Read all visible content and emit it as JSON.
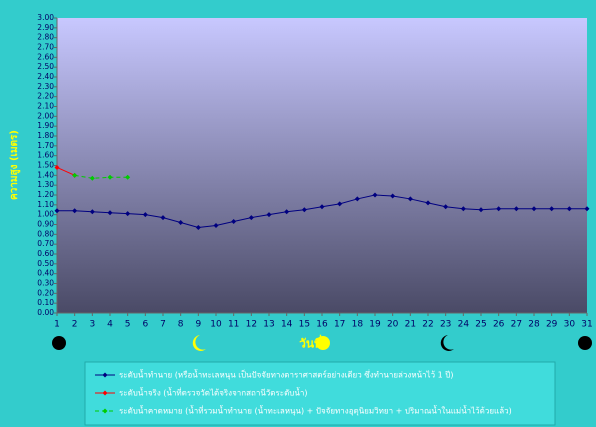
{
  "chart_data": {
    "type": "line",
    "y_label": "ความสูง (เมตร)",
    "x_label": "วันที่",
    "x": [
      1,
      2,
      3,
      4,
      5,
      6,
      7,
      8,
      9,
      10,
      11,
      12,
      13,
      14,
      15,
      16,
      17,
      18,
      19,
      20,
      21,
      22,
      23,
      24,
      25,
      26,
      27,
      28,
      29,
      30,
      31
    ],
    "xlim": [
      1,
      31
    ],
    "xticks": [
      1,
      2,
      3,
      4,
      5,
      6,
      7,
      8,
      9,
      10,
      11,
      12,
      13,
      14,
      15,
      16,
      17,
      18,
      19,
      20,
      21,
      22,
      23,
      24,
      25,
      26,
      27,
      28,
      29,
      30,
      31
    ],
    "ylim": [
      0,
      3
    ],
    "yticks": [
      {
        "value": 0,
        "label": "0.00"
      },
      {
        "value": 0.1,
        "label": "0.10"
      },
      {
        "value": 0.2,
        "label": "0.20"
      },
      {
        "value": 0.3,
        "label": "0.30"
      },
      {
        "value": 0.4,
        "label": "0.40"
      },
      {
        "value": 0.5,
        "label": "0.50"
      },
      {
        "value": 0.6,
        "label": "0.60"
      },
      {
        "value": 0.7,
        "label": "0.70"
      },
      {
        "value": 0.8,
        "label": "0.80"
      },
      {
        "value": 0.9,
        "label": "0.90"
      },
      {
        "value": 1,
        "label": "1.00"
      },
      {
        "value": 1.1,
        "label": "1.10"
      },
      {
        "value": 1.2,
        "label": "1.20"
      },
      {
        "value": 1.3,
        "label": "1.30"
      },
      {
        "value": 1.4,
        "label": "1.40"
      },
      {
        "value": 1.5,
        "label": "1.50"
      },
      {
        "value": 1.6,
        "label": "1.60"
      },
      {
        "value": 1.7,
        "label": "1.70"
      },
      {
        "value": 1.8,
        "label": "1.80"
      },
      {
        "value": 1.9,
        "label": "1.90"
      },
      {
        "value": 2,
        "label": "2.00"
      },
      {
        "value": 2.1,
        "label": "2.10"
      },
      {
        "value": 2.2,
        "label": "2.20"
      },
      {
        "value": 2.3,
        "label": "2.30"
      },
      {
        "value": 2.4,
        "label": "2.40"
      },
      {
        "value": 2.5,
        "label": "2.50"
      },
      {
        "value": 2.6,
        "label": "2.60"
      },
      {
        "value": 2.7,
        "label": "2.70"
      },
      {
        "value": 2.8,
        "label": "2.80"
      },
      {
        "value": 2.9,
        "label": "2.90"
      },
      {
        "value": 3,
        "label": "3.00"
      }
    ],
    "grid": false,
    "series": [
      {
        "name": "ระดับน้ำทำนาย (หรือน้ำทะเลหนุน เป็นปัจจัยทางดาราศาสตร์อย่างเดียว ซึ่งทำนายล่วงหน้าไว้ 1 ปี)",
        "color": "#000080",
        "dashed": false,
        "values": [
          1.04,
          1.04,
          1.03,
          1.02,
          1.01,
          1.0,
          0.97,
          0.92,
          0.87,
          0.89,
          0.93,
          0.97,
          1.0,
          1.03,
          1.05,
          1.08,
          1.11,
          1.16,
          1.2,
          1.19,
          1.16,
          1.12,
          1.08,
          1.06,
          1.05,
          1.06,
          1.06,
          1.06,
          1.06,
          1.06,
          1.06
        ]
      },
      {
        "name": "ระดับน้ำจริง (น้ำที่ตรวจวัดได้จริงจากสถานีวัดระดับน้ำ)",
        "color": "#ff0000",
        "dashed": false,
        "values": [
          1.48,
          1.4,
          null,
          null,
          null,
          null,
          null,
          null,
          null,
          null,
          null,
          null,
          null,
          null,
          null,
          null,
          null,
          null,
          null,
          null,
          null,
          null,
          null,
          null,
          null,
          null,
          null,
          null,
          null,
          null,
          null
        ]
      },
      {
        "name": "ระดับน้ำคาดหมาย (น้ำที่รวมน้ำทำนาย (น้ำทะเลหนุน) + ปัจจัยทางอุตุนิยมวิทยา + ปริมาณน้ำในแม่น้ำไว้ด้วยแล้ว)",
        "color": "#00cc00",
        "dashed": true,
        "values": [
          null,
          1.4,
          1.37,
          1.38,
          1.38,
          null,
          null,
          null,
          null,
          null,
          null,
          null,
          null,
          null,
          null,
          null,
          null,
          null,
          null,
          null,
          null,
          null,
          null,
          null,
          null,
          null,
          null,
          null,
          null,
          null,
          null
        ]
      }
    ]
  }
}
